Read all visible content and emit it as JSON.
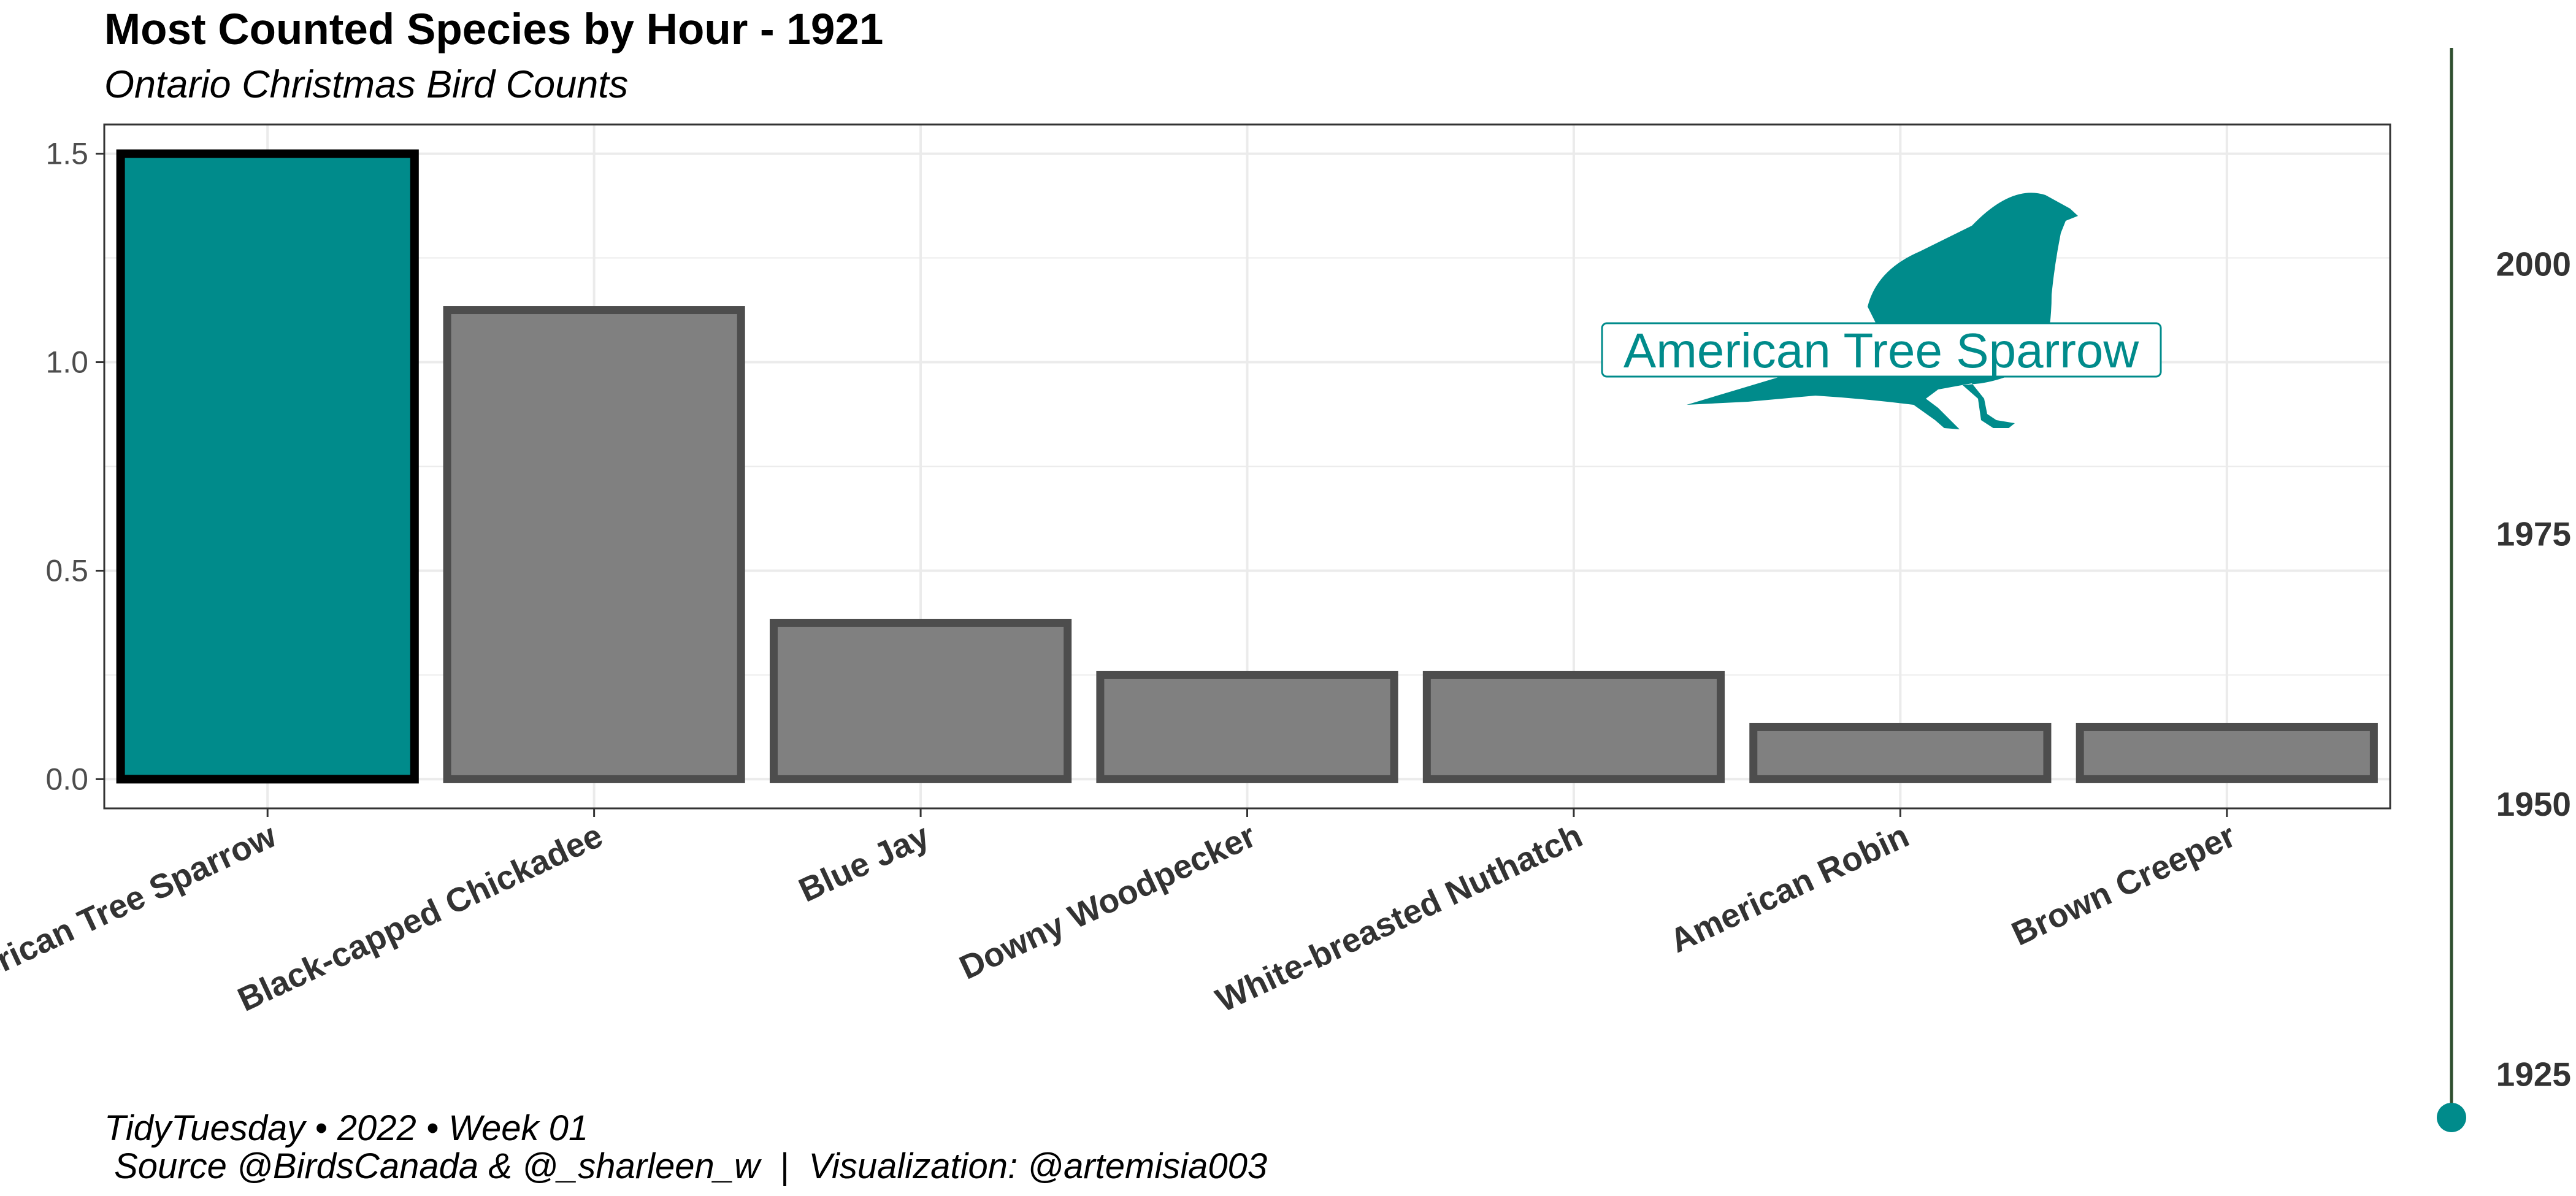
{
  "colors": {
    "highlight": "#008B8B",
    "bar": "#808080",
    "bar_outline": "#4d4d4d",
    "highlight_outline": "#000000",
    "grid": "#ebebeb",
    "timeline": "#2f4f2f"
  },
  "icons": {
    "bird": "bird-silhouette-icon"
  },
  "chart_data": {
    "type": "bar",
    "title": "Most Counted Species by Hour - 1921",
    "subtitle": "Ontario Christmas Bird Counts",
    "xlabel": "",
    "ylabel": "",
    "categories": [
      "American Tree Sparrow",
      "Black-capped Chickadee",
      "Blue Jay",
      "Downy Woodpecker",
      "White-breasted Nuthatch",
      "American Robin",
      "Brown Creeper"
    ],
    "values": [
      1.5,
      1.125,
      0.375,
      0.25,
      0.25,
      0.125,
      0.125
    ],
    "highlighted": "American Tree Sparrow",
    "ylim": [
      -0.07,
      1.57
    ],
    "yticks": [
      0.0,
      0.5,
      1.0,
      1.5
    ],
    "ytick_labels": [
      "0.0",
      "0.5",
      "1.0",
      "1.5"
    ],
    "grid": true,
    "annotation": "American Tree Sparrow",
    "timeline": {
      "range": [
        1921,
        2020
      ],
      "ticks": [
        1925,
        1950,
        1975,
        2000
      ],
      "current": 1921
    }
  },
  "caption": {
    "line1": "TidyTuesday • 2022 • Week 01",
    "line2": " Source @BirdsCanada & @_sharleen_w  |  Visualization: @artemisia003"
  }
}
